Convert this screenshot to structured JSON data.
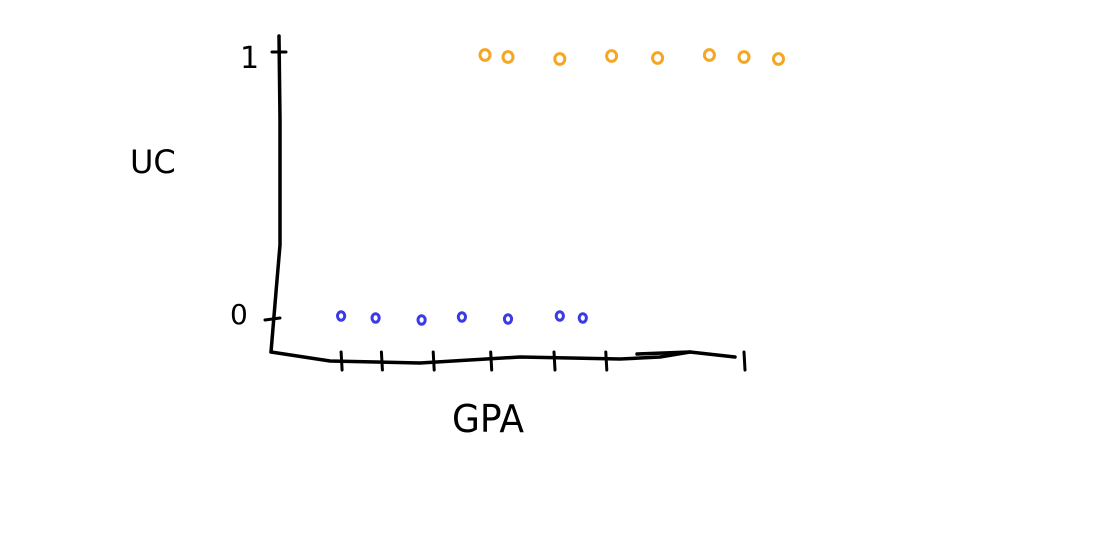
{
  "chart_data": {
    "type": "scatter",
    "xlabel": "GPA",
    "ylabel": "UC",
    "ytick_labels": [
      "0",
      "1"
    ],
    "xlim": [
      0,
      9
    ],
    "ylim": [
      -0.15,
      1.05
    ],
    "series": [
      {
        "color": "#3a3ae6",
        "points": [
          {
            "x": 1.2,
            "y": 0
          },
          {
            "x": 1.8,
            "y": 0
          },
          {
            "x": 2.6,
            "y": 0
          },
          {
            "x": 3.3,
            "y": 0
          },
          {
            "x": 4.1,
            "y": 0
          },
          {
            "x": 5.0,
            "y": 0
          },
          {
            "x": 5.4,
            "y": 0
          }
        ]
      },
      {
        "color": "#f5a623",
        "points": [
          {
            "x": 3.7,
            "y": 1
          },
          {
            "x": 4.1,
            "y": 1
          },
          {
            "x": 5.0,
            "y": 1
          },
          {
            "x": 5.9,
            "y": 1
          },
          {
            "x": 6.7,
            "y": 1
          },
          {
            "x": 7.6,
            "y": 1
          },
          {
            "x": 8.2,
            "y": 1
          },
          {
            "x": 8.8,
            "y": 1
          }
        ]
      }
    ],
    "xticks": [
      1.2,
      1.9,
      2.8,
      3.8,
      4.9,
      5.8,
      8.2
    ],
    "grid": false,
    "legend": "none"
  }
}
